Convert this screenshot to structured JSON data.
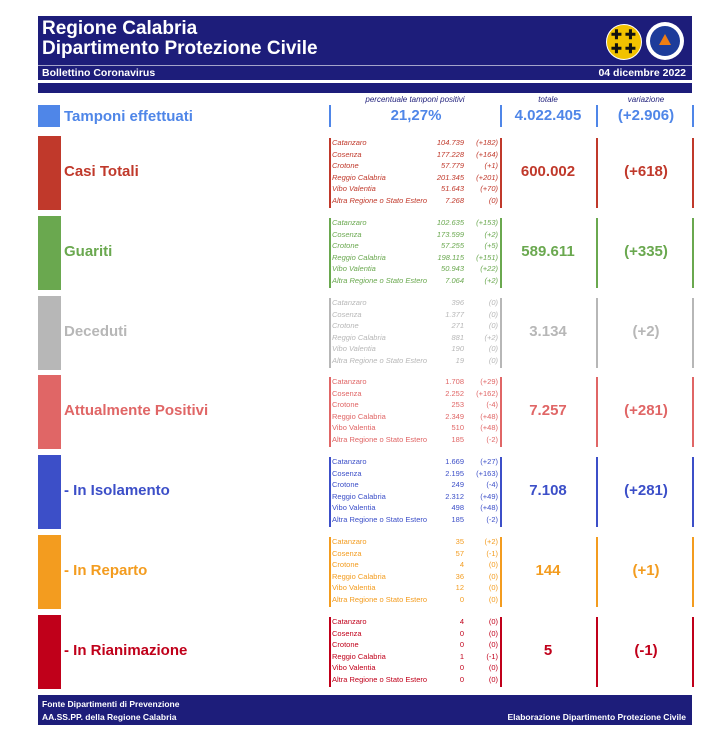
{
  "header": {
    "title1": "Regione Calabria",
    "title2": "Dipartimento Protezione Civile",
    "subtitle": "Bollettino Coronavirus",
    "date": "04 dicembre 2022"
  },
  "columns": {
    "percent_label": "percentuale tamponi positivi",
    "total_label": "totale",
    "variation_label": "variazione"
  },
  "tamponi": {
    "label": "Tamponi effettuati",
    "percent": "21,27%",
    "total": "4.022.405",
    "variation": "(+2.906)",
    "color": "#4f86e8"
  },
  "rows": [
    {
      "id": "casi-totali",
      "label": "Casi Totali",
      "color": "#c0392b",
      "total": "600.002",
      "variation": "(+618)",
      "italic": true,
      "provinces": [
        {
          "name": "Catanzaro",
          "value": "104.739",
          "delta": "(+182)"
        },
        {
          "name": "Cosenza",
          "value": "177.228",
          "delta": "(+164)"
        },
        {
          "name": "Crotone",
          "value": "57.779",
          "delta": "(+1)"
        },
        {
          "name": "Reggio Calabria",
          "value": "201.345",
          "delta": "(+201)"
        },
        {
          "name": "Vibo Valentia",
          "value": "51.643",
          "delta": "(+70)"
        },
        {
          "name": "Altra Regione o Stato Estero",
          "value": "7.268",
          "delta": "(0)"
        }
      ]
    },
    {
      "id": "guariti",
      "label": "Guariti",
      "color": "#6aa84f",
      "total": "589.611",
      "variation": "(+335)",
      "italic": true,
      "provinces": [
        {
          "name": "Catanzaro",
          "value": "102.635",
          "delta": "(+153)"
        },
        {
          "name": "Cosenza",
          "value": "173.599",
          "delta": "(+2)"
        },
        {
          "name": "Crotone",
          "value": "57.255",
          "delta": "(+5)"
        },
        {
          "name": "Reggio Calabria",
          "value": "198.115",
          "delta": "(+151)"
        },
        {
          "name": "Vibo Valentia",
          "value": "50.943",
          "delta": "(+22)"
        },
        {
          "name": "Altra Regione o Stato Estero",
          "value": "7.064",
          "delta": "(+2)"
        }
      ]
    },
    {
      "id": "deceduti",
      "label": "Deceduti",
      "color": "#b7b7b7",
      "total": "3.134",
      "variation": "(+2)",
      "italic": true,
      "provinces": [
        {
          "name": "Catanzaro",
          "value": "396",
          "delta": "(0)"
        },
        {
          "name": "Cosenza",
          "value": "1.377",
          "delta": "(0)"
        },
        {
          "name": "Crotone",
          "value": "271",
          "delta": "(0)"
        },
        {
          "name": "Reggio Calabria",
          "value": "881",
          "delta": "(+2)"
        },
        {
          "name": "Vibo Valentia",
          "value": "190",
          "delta": "(0)"
        },
        {
          "name": "Altra Regione o Stato Estero",
          "value": "19",
          "delta": "(0)"
        }
      ]
    },
    {
      "id": "attualmente-positivi",
      "label": "Attualmente Positivi",
      "color": "#e06666",
      "total": "7.257",
      "variation": "(+281)",
      "italic": false,
      "provinces": [
        {
          "name": "Catanzaro",
          "value": "1.708",
          "delta": "(+29)"
        },
        {
          "name": "Cosenza",
          "value": "2.252",
          "delta": "(+162)"
        },
        {
          "name": "Crotone",
          "value": "253",
          "delta": "(-4)"
        },
        {
          "name": "Reggio Calabria",
          "value": "2.349",
          "delta": "(+48)"
        },
        {
          "name": "Vibo Valentia",
          "value": "510",
          "delta": "(+48)"
        },
        {
          "name": "Altra Regione o Stato Estero",
          "value": "185",
          "delta": "(-2)"
        }
      ]
    },
    {
      "id": "in-isolamento",
      "label": " - In Isolamento",
      "color": "#3c4fc8",
      "total": "7.108",
      "variation": "(+281)",
      "italic": false,
      "provinces": [
        {
          "name": "Catanzaro",
          "value": "1.669",
          "delta": "(+27)"
        },
        {
          "name": "Cosenza",
          "value": "2.195",
          "delta": "(+163)"
        },
        {
          "name": "Crotone",
          "value": "249",
          "delta": "(-4)"
        },
        {
          "name": "Reggio Calabria",
          "value": "2.312",
          "delta": "(+49)"
        },
        {
          "name": "Vibo Valentia",
          "value": "498",
          "delta": "(+48)"
        },
        {
          "name": "Altra Regione o Stato Estero",
          "value": "185",
          "delta": "(-2)"
        }
      ]
    },
    {
      "id": "in-reparto",
      "label": " - In Reparto",
      "color": "#f39c1f",
      "total": "144",
      "variation": "(+1)",
      "italic": false,
      "provinces": [
        {
          "name": "Catanzaro",
          "value": "35",
          "delta": "(+2)"
        },
        {
          "name": "Cosenza",
          "value": "57",
          "delta": "(-1)"
        },
        {
          "name": "Crotone",
          "value": "4",
          "delta": "(0)"
        },
        {
          "name": "Reggio Calabria",
          "value": "36",
          "delta": "(0)"
        },
        {
          "name": "Vibo Valentia",
          "value": "12",
          "delta": "(0)"
        },
        {
          "name": "Altra Regione o Stato Estero",
          "value": "0",
          "delta": "(0)"
        }
      ]
    },
    {
      "id": "in-rianimazione",
      "label": " - In Rianimazione",
      "color": "#c0001a",
      "total": "5",
      "variation": "(-1)",
      "italic": false,
      "provinces": [
        {
          "name": "Catanzaro",
          "value": "4",
          "delta": "(0)"
        },
        {
          "name": "Cosenza",
          "value": "0",
          "delta": "(0)"
        },
        {
          "name": "Crotone",
          "value": "0",
          "delta": "(0)"
        },
        {
          "name": "Reggio Calabria",
          "value": "1",
          "delta": "(-1)"
        },
        {
          "name": "Vibo Valentia",
          "value": "0",
          "delta": "(0)"
        },
        {
          "name": "Altra Regione o Stato Estero",
          "value": "0",
          "delta": "(0)"
        }
      ]
    }
  ],
  "footer": {
    "line1": "Fonte Dipartimenti di Prevenzione",
    "line2": "AA.SS.PP.  della Regione Calabria",
    "credit": "Elaborazione Dipartimento Protezione Civile"
  }
}
